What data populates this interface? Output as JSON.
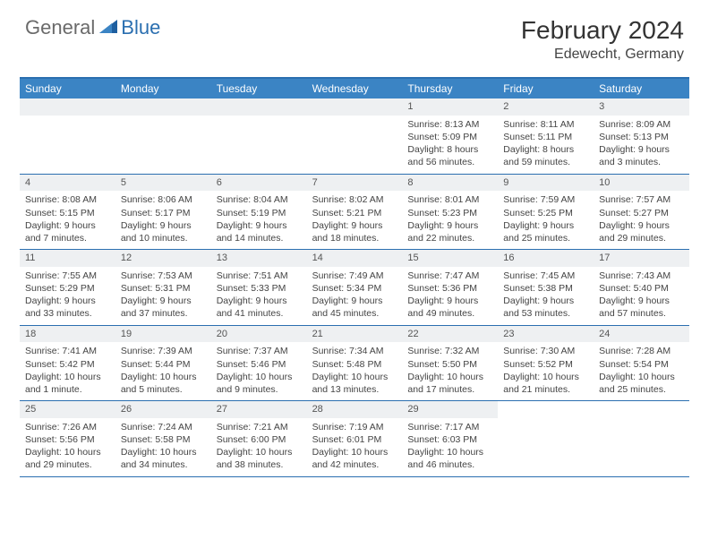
{
  "logo": {
    "text_gray": "General",
    "text_blue": "Blue"
  },
  "title": "February 2024",
  "location": "Edewecht, Germany",
  "colors": {
    "header_bar": "#3b84c4",
    "border": "#2b6fb0",
    "daynum_bg": "#eef0f2",
    "logo_gray": "#6a6a6a",
    "logo_blue": "#2b6fb0"
  },
  "dow": [
    "Sunday",
    "Monday",
    "Tuesday",
    "Wednesday",
    "Thursday",
    "Friday",
    "Saturday"
  ],
  "weeks": [
    [
      null,
      null,
      null,
      null,
      {
        "n": "1",
        "sr": "8:13 AM",
        "ss": "5:09 PM",
        "d1": "Daylight: 8 hours",
        "d2": "and 56 minutes."
      },
      {
        "n": "2",
        "sr": "8:11 AM",
        "ss": "5:11 PM",
        "d1": "Daylight: 8 hours",
        "d2": "and 59 minutes."
      },
      {
        "n": "3",
        "sr": "8:09 AM",
        "ss": "5:13 PM",
        "d1": "Daylight: 9 hours",
        "d2": "and 3 minutes."
      }
    ],
    [
      {
        "n": "4",
        "sr": "8:08 AM",
        "ss": "5:15 PM",
        "d1": "Daylight: 9 hours",
        "d2": "and 7 minutes."
      },
      {
        "n": "5",
        "sr": "8:06 AM",
        "ss": "5:17 PM",
        "d1": "Daylight: 9 hours",
        "d2": "and 10 minutes."
      },
      {
        "n": "6",
        "sr": "8:04 AM",
        "ss": "5:19 PM",
        "d1": "Daylight: 9 hours",
        "d2": "and 14 minutes."
      },
      {
        "n": "7",
        "sr": "8:02 AM",
        "ss": "5:21 PM",
        "d1": "Daylight: 9 hours",
        "d2": "and 18 minutes."
      },
      {
        "n": "8",
        "sr": "8:01 AM",
        "ss": "5:23 PM",
        "d1": "Daylight: 9 hours",
        "d2": "and 22 minutes."
      },
      {
        "n": "9",
        "sr": "7:59 AM",
        "ss": "5:25 PM",
        "d1": "Daylight: 9 hours",
        "d2": "and 25 minutes."
      },
      {
        "n": "10",
        "sr": "7:57 AM",
        "ss": "5:27 PM",
        "d1": "Daylight: 9 hours",
        "d2": "and 29 minutes."
      }
    ],
    [
      {
        "n": "11",
        "sr": "7:55 AM",
        "ss": "5:29 PM",
        "d1": "Daylight: 9 hours",
        "d2": "and 33 minutes."
      },
      {
        "n": "12",
        "sr": "7:53 AM",
        "ss": "5:31 PM",
        "d1": "Daylight: 9 hours",
        "d2": "and 37 minutes."
      },
      {
        "n": "13",
        "sr": "7:51 AM",
        "ss": "5:33 PM",
        "d1": "Daylight: 9 hours",
        "d2": "and 41 minutes."
      },
      {
        "n": "14",
        "sr": "7:49 AM",
        "ss": "5:34 PM",
        "d1": "Daylight: 9 hours",
        "d2": "and 45 minutes."
      },
      {
        "n": "15",
        "sr": "7:47 AM",
        "ss": "5:36 PM",
        "d1": "Daylight: 9 hours",
        "d2": "and 49 minutes."
      },
      {
        "n": "16",
        "sr": "7:45 AM",
        "ss": "5:38 PM",
        "d1": "Daylight: 9 hours",
        "d2": "and 53 minutes."
      },
      {
        "n": "17",
        "sr": "7:43 AM",
        "ss": "5:40 PM",
        "d1": "Daylight: 9 hours",
        "d2": "and 57 minutes."
      }
    ],
    [
      {
        "n": "18",
        "sr": "7:41 AM",
        "ss": "5:42 PM",
        "d1": "Daylight: 10 hours",
        "d2": "and 1 minute."
      },
      {
        "n": "19",
        "sr": "7:39 AM",
        "ss": "5:44 PM",
        "d1": "Daylight: 10 hours",
        "d2": "and 5 minutes."
      },
      {
        "n": "20",
        "sr": "7:37 AM",
        "ss": "5:46 PM",
        "d1": "Daylight: 10 hours",
        "d2": "and 9 minutes."
      },
      {
        "n": "21",
        "sr": "7:34 AM",
        "ss": "5:48 PM",
        "d1": "Daylight: 10 hours",
        "d2": "and 13 minutes."
      },
      {
        "n": "22",
        "sr": "7:32 AM",
        "ss": "5:50 PM",
        "d1": "Daylight: 10 hours",
        "d2": "and 17 minutes."
      },
      {
        "n": "23",
        "sr": "7:30 AM",
        "ss": "5:52 PM",
        "d1": "Daylight: 10 hours",
        "d2": "and 21 minutes."
      },
      {
        "n": "24",
        "sr": "7:28 AM",
        "ss": "5:54 PM",
        "d1": "Daylight: 10 hours",
        "d2": "and 25 minutes."
      }
    ],
    [
      {
        "n": "25",
        "sr": "7:26 AM",
        "ss": "5:56 PM",
        "d1": "Daylight: 10 hours",
        "d2": "and 29 minutes."
      },
      {
        "n": "26",
        "sr": "7:24 AM",
        "ss": "5:58 PM",
        "d1": "Daylight: 10 hours",
        "d2": "and 34 minutes."
      },
      {
        "n": "27",
        "sr": "7:21 AM",
        "ss": "6:00 PM",
        "d1": "Daylight: 10 hours",
        "d2": "and 38 minutes."
      },
      {
        "n": "28",
        "sr": "7:19 AM",
        "ss": "6:01 PM",
        "d1": "Daylight: 10 hours",
        "d2": "and 42 minutes."
      },
      {
        "n": "29",
        "sr": "7:17 AM",
        "ss": "6:03 PM",
        "d1": "Daylight: 10 hours",
        "d2": "and 46 minutes."
      },
      null,
      null
    ]
  ],
  "labels": {
    "sunrise_prefix": "Sunrise: ",
    "sunset_prefix": "Sunset: "
  }
}
